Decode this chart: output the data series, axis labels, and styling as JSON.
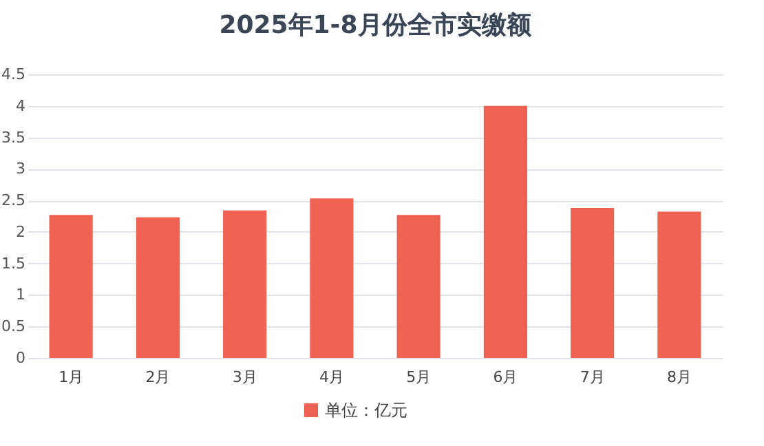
{
  "chart_data": {
    "type": "bar",
    "title": "2025年1-8月份全市实缴额",
    "categories": [
      "1月",
      "2月",
      "3月",
      "4月",
      "5月",
      "6月",
      "7月",
      "8月"
    ],
    "series": [
      {
        "name": "单位：亿元",
        "color": "#ef6150",
        "values": [
          2.27,
          2.23,
          2.34,
          2.53,
          2.27,
          4.0,
          2.38,
          2.32
        ]
      }
    ],
    "ylim": [
      0,
      4.5
    ],
    "yticks": [
      0,
      0.5,
      1,
      1.5,
      2,
      2.5,
      3,
      3.5,
      4,
      4.5
    ],
    "grid": "y",
    "legend": "bottom"
  }
}
